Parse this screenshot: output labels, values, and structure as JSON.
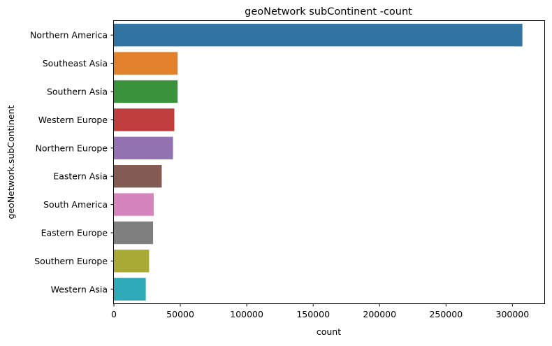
{
  "chart_data": {
    "type": "bar",
    "orientation": "horizontal",
    "title": "geoNetwork subContinent -count",
    "xlabel": "count",
    "ylabel": "geoNetwork.subContinent",
    "xlim": [
      0,
      324000
    ],
    "xticks": [
      0,
      50000,
      100000,
      150000,
      200000,
      250000,
      300000
    ],
    "xtick_labels": [
      "0",
      "50000",
      "100000",
      "150000",
      "200000",
      "250000",
      "300000"
    ],
    "grid": false,
    "categories": [
      "Northern America",
      "Southeast Asia",
      "Southern Asia",
      "Western Europe",
      "Northern Europe",
      "Eastern Asia",
      "South America",
      "Eastern Europe",
      "Southern Europe",
      "Western Asia"
    ],
    "values": [
      307500,
      48000,
      48000,
      45500,
      44500,
      36000,
      30000,
      29500,
      26500,
      24000
    ],
    "colors": [
      "#3274a1",
      "#e1812c",
      "#3a923a",
      "#c03d3e",
      "#9372b2",
      "#845b53",
      "#d684bd",
      "#7f7f7f",
      "#a9aa35",
      "#2eaab8"
    ]
  }
}
